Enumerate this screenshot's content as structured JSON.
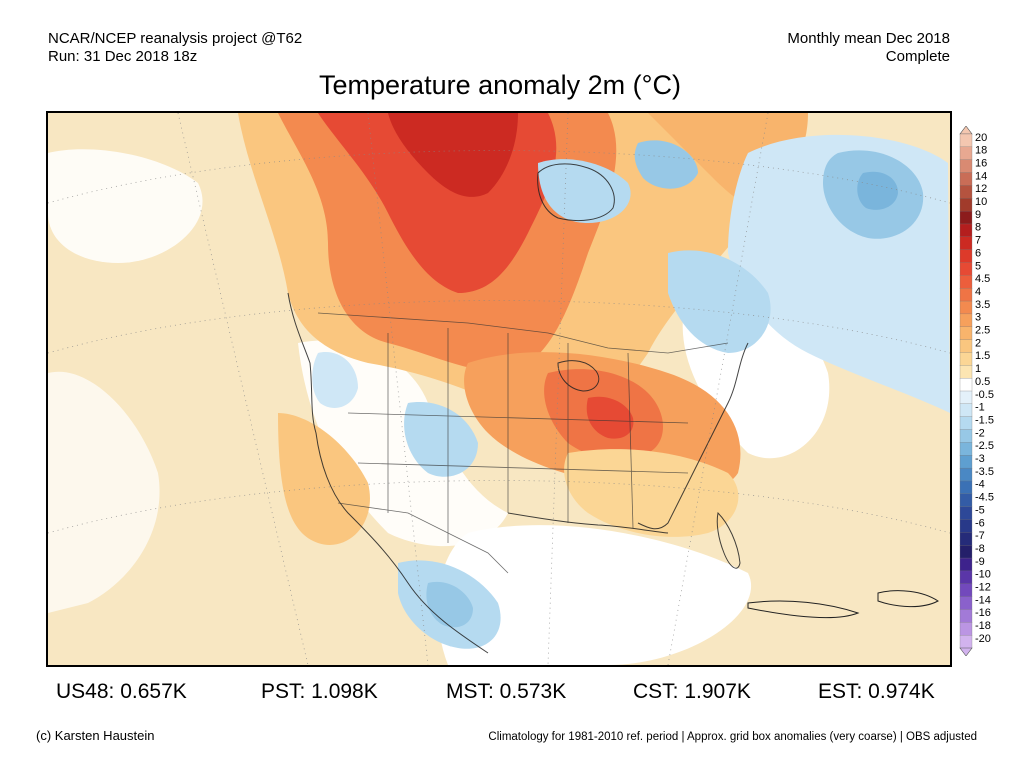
{
  "header": {
    "left_line1": "NCAR/NCEP reanalysis project @T62",
    "left_line2": "Run: 31 Dec 2018 18z",
    "right_line1": "Monthly mean Dec 2018",
    "right_line2": "Complete"
  },
  "title": "Temperature anomaly 2m (°C)",
  "legend": {
    "labels": [
      "20",
      "18",
      "16",
      "14",
      "12",
      "10",
      "9",
      "8",
      "7",
      "6",
      "5",
      "4.5",
      "4",
      "3.5",
      "3",
      "2.5",
      "2",
      "1.5",
      "1",
      "0.5",
      "-0.5",
      "-1",
      "-1.5",
      "-2",
      "-2.5",
      "-3",
      "-3.5",
      "-4",
      "-4.5",
      "-5",
      "-6",
      "-7",
      "-8",
      "-9",
      "-10",
      "-12",
      "-14",
      "-16",
      "-18",
      "-20"
    ],
    "colors": [
      "#f4c7b0",
      "#e8a891",
      "#d98a72",
      "#c96d57",
      "#b5533f",
      "#a13b2b",
      "#8c1c1c",
      "#b41e1e",
      "#cc2a22",
      "#dd3a2a",
      "#e64a34",
      "#ec5e3c",
      "#ef7445",
      "#f38a4f",
      "#f6a05c",
      "#f8b46c",
      "#fac67f",
      "#fbd695",
      "#fce5b2",
      "#ffffff",
      "#e4f1fa",
      "#cfe7f6",
      "#b5daf0",
      "#97c8e6",
      "#7ab5dc",
      "#5e9fd0",
      "#4a88c4",
      "#3b71b5",
      "#335ca6",
      "#2d4898",
      "#283989",
      "#252b79",
      "#241f6a",
      "#3d228c",
      "#5a36a8",
      "#7249bc",
      "#8a61cb",
      "#a27ad7",
      "#bb95e3",
      "#d2b3ee"
    ],
    "white_label": "0.5"
  },
  "stats": [
    {
      "label": "US48: 0.657K"
    },
    {
      "label": "PST: 1.098K"
    },
    {
      "label": "MST: 0.573K"
    },
    {
      "label": "CST: 1.907K"
    },
    {
      "label": "EST: 0.974K"
    }
  ],
  "footer": {
    "left": "(c) Karsten Haustein",
    "right": "Climatology for 1981-2010 ref. period | Approx. grid box anomalies (very coarse) | OBS adjusted"
  },
  "map": {
    "region": "North America",
    "variable": "2m temperature anomaly",
    "units": "°C",
    "features": [
      {
        "area": "Northwest Territories / Nunavut",
        "anomaly_range": "4 to 6"
      },
      {
        "area": "Great Lakes / Mississippi valley",
        "anomaly_range": "3 to 4"
      },
      {
        "area": "Hudson Bay / Quebec",
        "anomaly_range": "-1 to -2"
      },
      {
        "area": "Atlantic east of Newfoundland",
        "anomaly_range": "-1 to -2.5"
      },
      {
        "area": "Rocky Mountains / Colorado",
        "anomaly_range": "-0.5 to -2"
      },
      {
        "area": "Central Mexico",
        "anomaly_range": "-1 to -2"
      }
    ]
  }
}
